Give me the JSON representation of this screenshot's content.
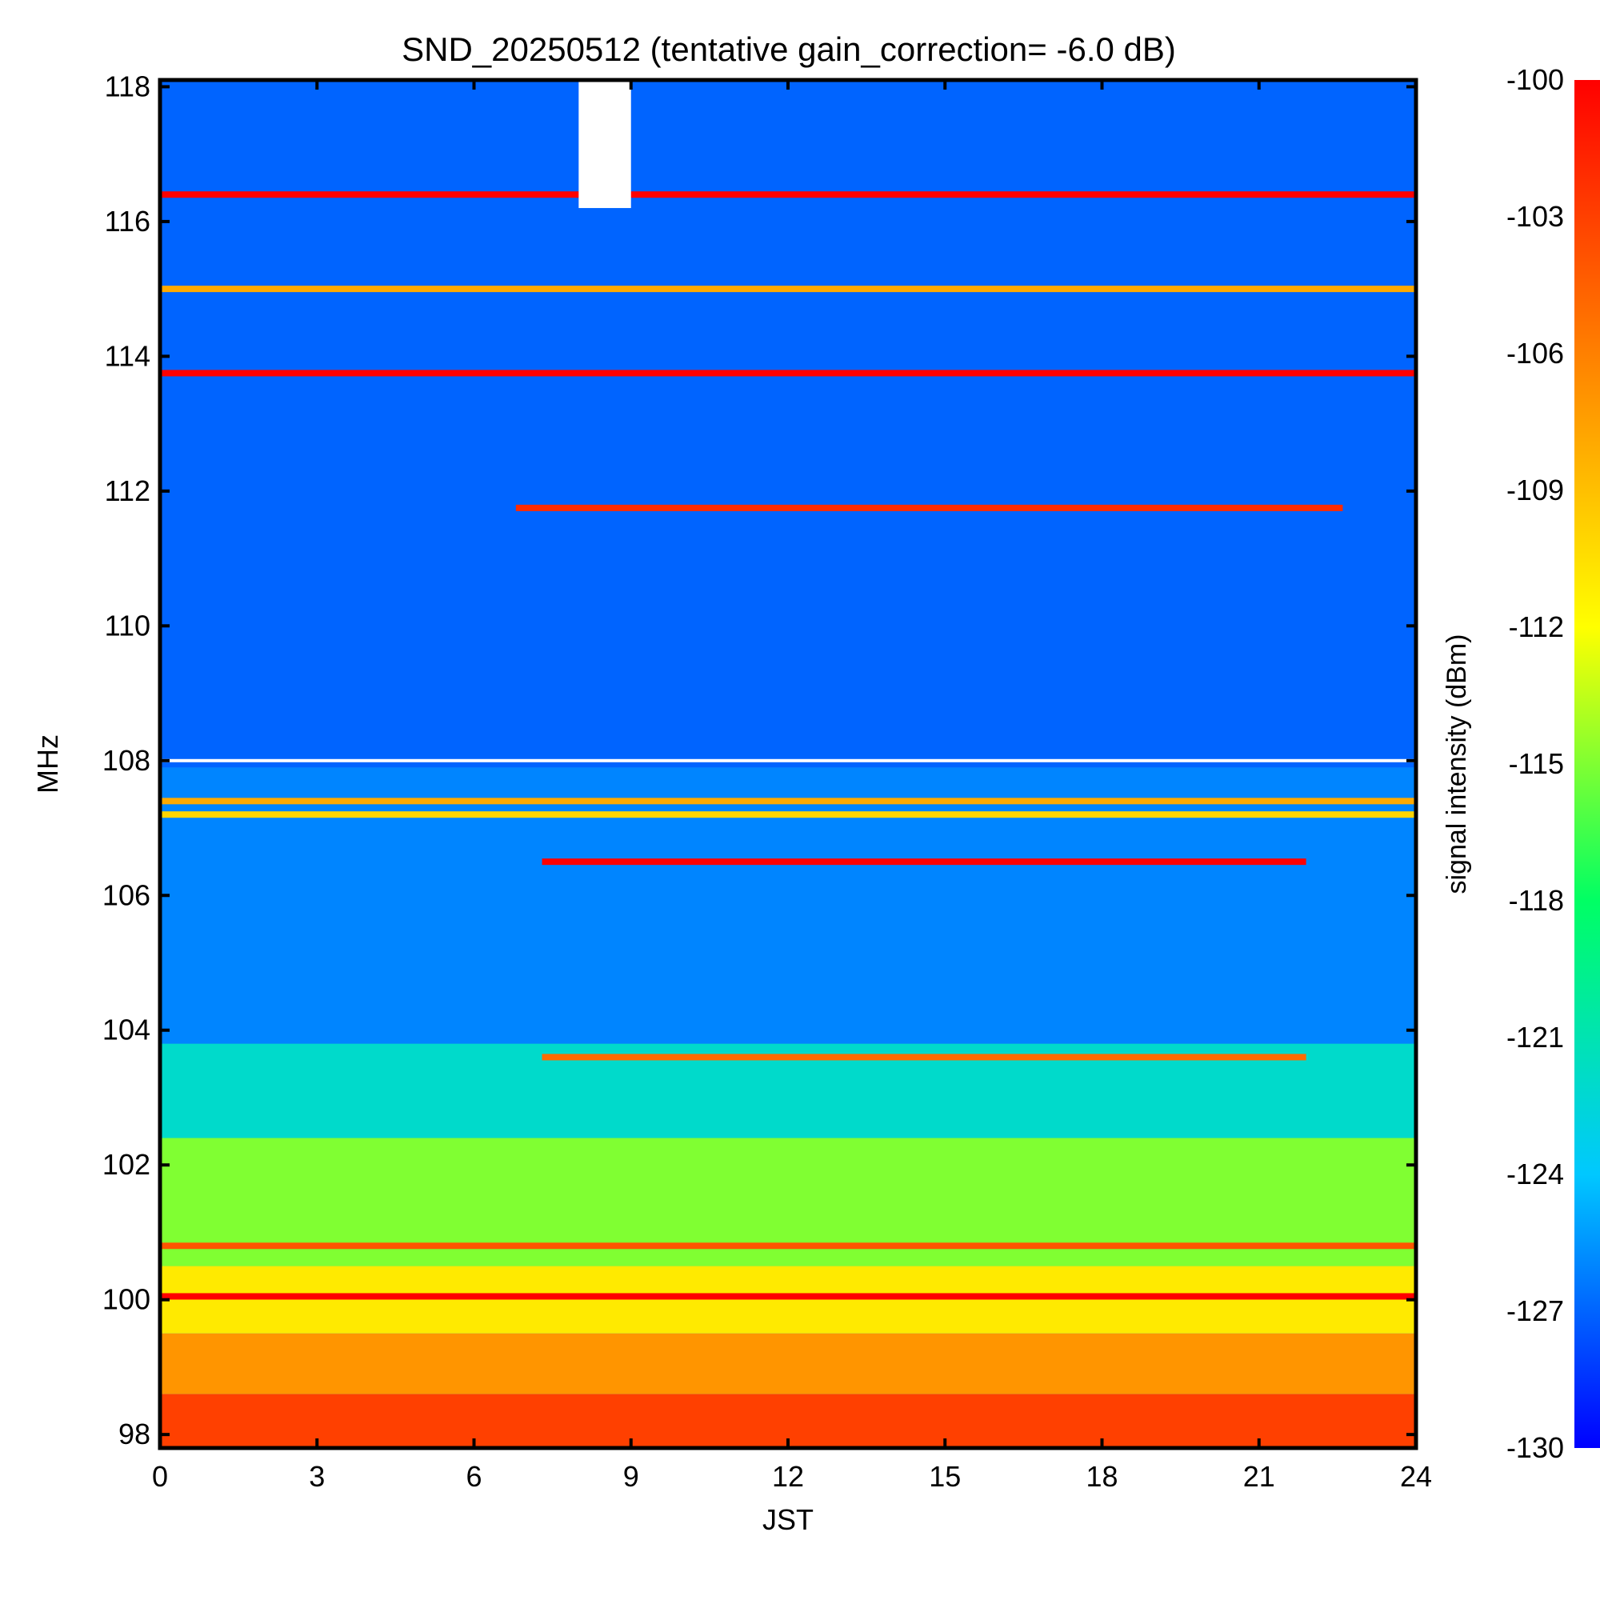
{
  "chart_data": {
    "type": "heatmap",
    "title": "SND_20250512 (tentative gain_correction= -6.0 dB)",
    "xlabel": "JST",
    "ylabel": "MHz",
    "colorbar_label": "signal intensity (dBm)",
    "xlim": [
      0,
      24
    ],
    "ylim": [
      97.8,
      118.1
    ],
    "clim": [
      -130,
      -100
    ],
    "x_ticks": [
      0,
      3,
      6,
      9,
      12,
      15,
      18,
      21,
      24
    ],
    "y_ticks": [
      98,
      100,
      102,
      104,
      106,
      108,
      110,
      112,
      114,
      116,
      118
    ],
    "colorbar_ticks": [
      -100,
      -103,
      -106,
      -109,
      -112,
      -115,
      -118,
      -121,
      -124,
      -127,
      -130
    ],
    "colormap": [
      "#0000ff",
      "#00c8ff",
      "#00ff64",
      "#ffff00",
      "#ff8000",
      "#ff0000"
    ],
    "colorbar_position": "right",
    "background_level_by_frequency": [
      {
        "freq_range": [
          97.8,
          98.6
        ],
        "dbm": -103
      },
      {
        "freq_range": [
          98.6,
          99.5
        ],
        "dbm": -107
      },
      {
        "freq_range": [
          99.5,
          100.5
        ],
        "dbm": -111
      },
      {
        "freq_range": [
          100.5,
          102.4
        ],
        "dbm": -115
      },
      {
        "freq_range": [
          102.4,
          103.8
        ],
        "dbm": -122
      },
      {
        "freq_range": [
          103.8,
          107.9
        ],
        "dbm": -126
      },
      {
        "freq_range": [
          107.9,
          118.1
        ],
        "dbm": -127
      }
    ],
    "persistent_lines": [
      {
        "freq": 116.4,
        "dbm": -100,
        "time_range": [
          0,
          24
        ]
      },
      {
        "freq": 115.0,
        "dbm": -108,
        "time_range": [
          0,
          24
        ]
      },
      {
        "freq": 113.75,
        "dbm": -100,
        "time_range": [
          0,
          24
        ]
      },
      {
        "freq": 111.75,
        "dbm": -102,
        "time_range": [
          6.8,
          22.6
        ]
      },
      {
        "freq": 107.4,
        "dbm": -108,
        "time_range": [
          0,
          24
        ]
      },
      {
        "freq": 107.2,
        "dbm": -110,
        "time_range": [
          0,
          24
        ]
      },
      {
        "freq": 106.5,
        "dbm": -100,
        "time_range": [
          7.3,
          21.9
        ]
      },
      {
        "freq": 103.6,
        "dbm": -105,
        "time_range": [
          7.3,
          21.9
        ]
      },
      {
        "freq": 100.8,
        "dbm": -104,
        "time_range": [
          0,
          24
        ]
      },
      {
        "freq": 100.05,
        "dbm": -100,
        "time_range": [
          0,
          24
        ]
      }
    ],
    "data_gap": {
      "time_range": [
        8.0,
        9.0
      ],
      "freq_range": [
        116.2,
        118.1
      ]
    },
    "white_lines_mhz": [
      108.0
    ]
  }
}
